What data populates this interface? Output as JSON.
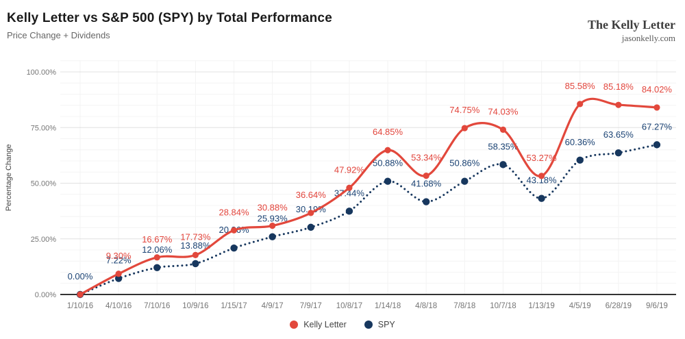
{
  "branding": {
    "name": "The Kelly Letter",
    "site": "jasonkelly.com"
  },
  "chart_data": {
    "type": "line",
    "title": "Kelly Letter vs S&P 500 (SPY) by Total Performance",
    "subtitle": "Price Change + Dividends",
    "xlabel": "",
    "ylabel": "Percentage Change",
    "ylim": [
      0,
      105
    ],
    "grid": {
      "horizontal_major_step": 25,
      "horizontal_minor_step": 5,
      "vertical_per_category": true
    },
    "yticks": [
      {
        "v": 0,
        "label": "0.00%"
      },
      {
        "v": 25,
        "label": "25.00%"
      },
      {
        "v": 50,
        "label": "50.00%"
      },
      {
        "v": 75,
        "label": "75.00%"
      },
      {
        "v": 100,
        "label": "100.00%"
      }
    ],
    "categories": [
      "1/10/16",
      "4/10/16",
      "7/10/16",
      "10/9/16",
      "1/15/17",
      "4/9/17",
      "7/9/17",
      "10/8/17",
      "1/14/18",
      "4/8/18",
      "7/8/18",
      "10/7/18",
      "1/13/19",
      "4/5/19",
      "6/28/19",
      "9/6/19"
    ],
    "series": [
      {
        "name": "Kelly Letter",
        "color": "#e2483c",
        "label_color": "#e2453c",
        "line": "solid",
        "values": [
          0.0,
          9.3,
          16.67,
          17.73,
          28.84,
          30.88,
          36.64,
          47.92,
          64.85,
          53.34,
          74.75,
          74.03,
          53.27,
          85.58,
          85.18,
          84.02
        ],
        "point_labels": [
          "",
          "9.30%",
          "16.67%",
          "17.73%",
          "28.84%",
          "30.88%",
          "36.64%",
          "47.92%",
          "64.85%",
          "53.34%",
          "74.75%",
          "74.03%",
          "53.27%",
          "85.58%",
          "85.18%",
          "84.02%"
        ]
      },
      {
        "name": "SPY",
        "color": "#17375e",
        "label_color": "#1a4273",
        "line": "dotted",
        "values": [
          0.0,
          7.22,
          12.06,
          13.88,
          20.86,
          25.93,
          30.19,
          37.44,
          50.88,
          41.68,
          50.86,
          58.35,
          43.18,
          60.36,
          63.65,
          67.27
        ],
        "point_labels": [
          "0.00%",
          "7.22%",
          "12.06%",
          "13.88%",
          "20.86%",
          "25.93%",
          "30.19%",
          "37.44%",
          "50.88%",
          "41.68%",
          "50.86%",
          "58.35%",
          "43.18%",
          "60.36%",
          "63.65%",
          "67.27%"
        ]
      }
    ],
    "legend": {
      "position": "bottom",
      "entries": [
        {
          "label": "Kelly Letter",
          "color": "#e2483c"
        },
        {
          "label": "SPY",
          "color": "#17375e"
        }
      ]
    }
  }
}
